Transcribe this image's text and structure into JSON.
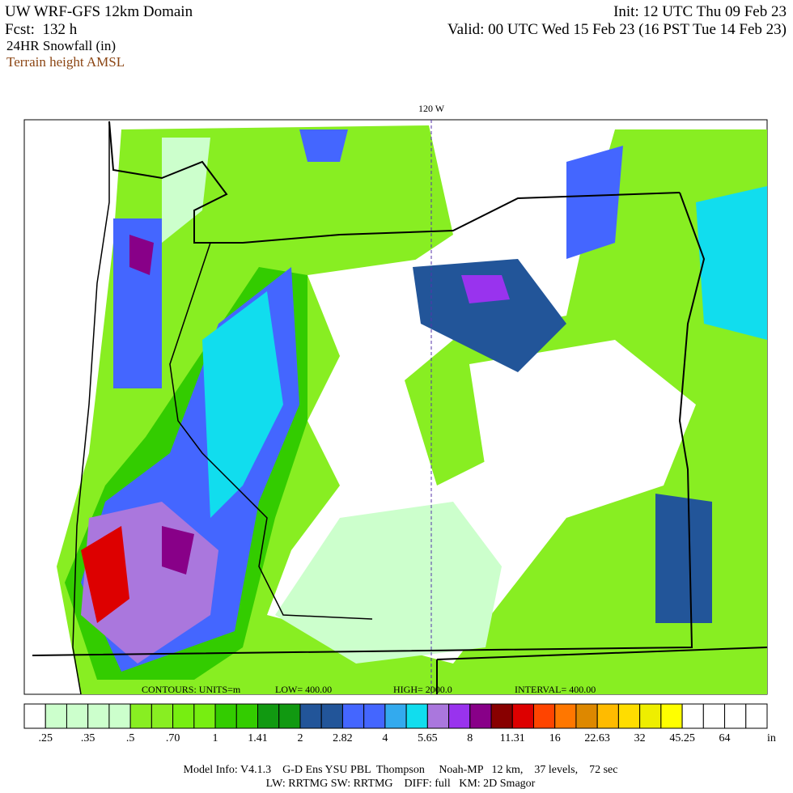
{
  "header": {
    "title": "UW WRF-GFS 12km Domain",
    "forecast": "Fcst:  132 h",
    "init": "Init: 12 UTC Thu 09 Feb 23",
    "valid": "Valid: 00 UTC Wed 15 Feb 23 (16 PST Tue 14 Feb 23)",
    "field": "24HR Snowfall (in)",
    "overlay": "Terrain height AMSL"
  },
  "map": {
    "longitude_label": "120 W",
    "contour_info": [
      "CONTOURS:  UNITS=m",
      "LOW=   400.00",
      "HIGH=  2000.0",
      "INTERVAL=   400.00"
    ]
  },
  "colorbar": {
    "colors": [
      "#ffffff",
      "#ccffcc",
      "#ccffcc",
      "#ccffcc",
      "#ccffcc",
      "#88ee22",
      "#88ee22",
      "#77ee11",
      "#77ee11",
      "#33cc00",
      "#33cc00",
      "#119911",
      "#119911",
      "#225599",
      "#225599",
      "#4466ff",
      "#4466ff",
      "#33aaee",
      "#11ddee",
      "#aa77dd",
      "#9933ee",
      "#880088",
      "#880000",
      "#dd0000",
      "#ff4400",
      "#ff7700",
      "#dd8800",
      "#ffbb00",
      "#ffdd00",
      "#eeee00",
      "#ffff00",
      "#ffffff",
      "#ffffff",
      "#ffffff",
      "#ffffff"
    ],
    "labels": [
      ".25",
      ".35",
      ".5",
      ".70",
      "1",
      "1.41",
      "2",
      "2.82",
      "4",
      "5.65",
      "8",
      "11.31",
      "16",
      "22.63",
      "32",
      "45.25",
      "64"
    ],
    "unit": "in"
  },
  "footer": {
    "line1": "Model Info: V4.1.3    G-D Ens YSU PBL  Thompson     Noah-MP   12 km,    37 levels,    72 sec",
    "line2": "LW: RRTMG SW: RRTMG    DIFF: full   KM: 2D Smagor"
  }
}
